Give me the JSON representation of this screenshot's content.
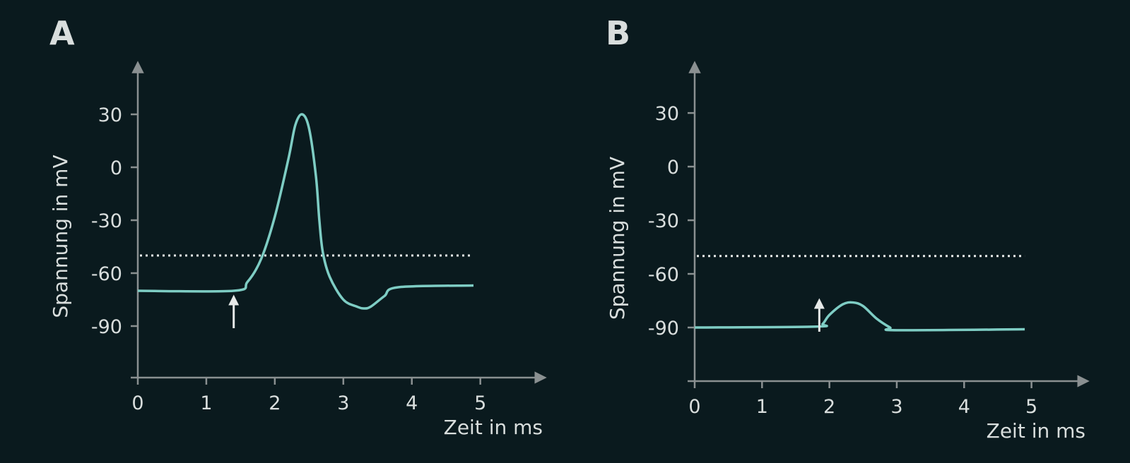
{
  "chart_data": [
    {
      "type": "line",
      "title": "A",
      "xlabel": "Zeit in ms",
      "ylabel": "Spannung in mV",
      "x": [
        0,
        1.4,
        1.6,
        1.8,
        2.0,
        2.2,
        2.3,
        2.4,
        2.5,
        2.6,
        2.65,
        2.7,
        2.8,
        3.0,
        3.2,
        3.3,
        3.4,
        3.6,
        3.8,
        4.9
      ],
      "series": [
        {
          "color": "#7ecdc4",
          "values": [
            -70,
            -70,
            -65,
            -52,
            -28,
            5,
            24,
            30,
            22,
            -5,
            -30,
            -48,
            -62,
            -75,
            -79,
            -80,
            -79,
            -73,
            -68,
            -67
          ]
        }
      ],
      "threshold": -50,
      "stimulus": 1.4,
      "xlim": [
        0,
        5.88
      ],
      "ylim": [
        -119.2,
        56.8
      ],
      "xticks": [
        0,
        1,
        2,
        3,
        4,
        5
      ],
      "yticks": [
        30,
        0,
        -30,
        -60,
        -90
      ]
    },
    {
      "type": "line",
      "title": "B",
      "xlabel": "Zeit in ms",
      "ylabel": "Spannung in mV",
      "x": [
        0,
        1.8,
        1.9,
        2.0,
        2.2,
        2.35,
        2.5,
        2.7,
        2.9,
        3.0,
        4.9
      ],
      "series": [
        {
          "color": "#7ecdc4",
          "values": [
            -90,
            -89.5,
            -88,
            -83,
            -77,
            -76,
            -78,
            -85,
            -90,
            -91.5,
            -91
          ]
        }
      ],
      "threshold": -50,
      "stimulus": 1.85,
      "xlim": [
        0,
        5.77
      ],
      "ylim": [
        -120,
        55.7
      ],
      "xticks": [
        0,
        1,
        2,
        3,
        4,
        5
      ],
      "yticks": [
        30,
        0,
        -30,
        -60,
        -90
      ]
    }
  ]
}
